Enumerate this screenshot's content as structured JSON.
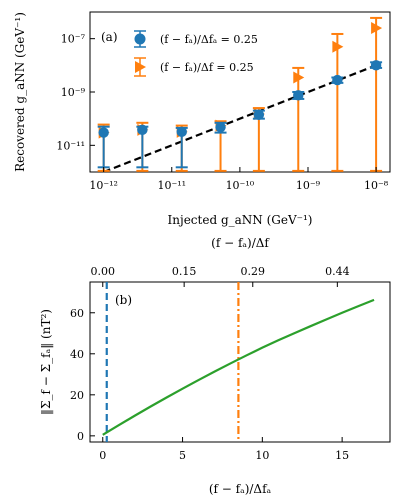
{
  "chart_data": [
    {
      "type": "scatter",
      "panel_label": "(a)",
      "xlabel": "Injected g_aNN (GeV⁻¹)",
      "ylabel": "Recovered g_aNN (GeV⁻¹)",
      "xscale": "log",
      "yscale": "log",
      "xlim": [
        6.3e-13,
        1.6e-08
      ],
      "ylim": [
        1e-12,
        1e-06
      ],
      "x_ticks": [
        {
          "value": 1e-12,
          "label": "10⁻¹²"
        },
        {
          "value": 1e-11,
          "label": "10⁻¹¹"
        },
        {
          "value": 1e-10,
          "label": "10⁻¹⁰"
        },
        {
          "value": 1e-09,
          "label": "10⁻⁹"
        },
        {
          "value": 1e-08,
          "label": "10⁻⁸"
        }
      ],
      "y_ticks": [
        {
          "value": 1e-11,
          "label": "10⁻¹¹"
        },
        {
          "value": 1e-09,
          "label": "10⁻⁹"
        },
        {
          "value": 1e-07,
          "label": "10⁻⁷"
        }
      ],
      "legend_placement": "top-left",
      "reference_line": {
        "style": "dashed",
        "color": "#000000",
        "x": [
          1e-12,
          1e-08
        ],
        "y": [
          1e-12,
          1e-08
        ]
      },
      "series": [
        {
          "name": "(f − fₐ)/Δfₐ = 0.25",
          "marker": "circle",
          "color": "#1f77b4",
          "points": [
            {
              "x": 1e-12,
              "y": 3e-11,
              "lo": 1.5e-12,
              "hi": 5e-11
            },
            {
              "x": 3.7e-12,
              "y": 3.8e-11,
              "lo": 1.5e-12,
              "hi": 5e-11
            },
            {
              "x": 1.4e-11,
              "y": 3.2e-11,
              "lo": 1.5e-12,
              "hi": 4.5e-11
            },
            {
              "x": 5.2e-11,
              "y": 4.8e-11,
              "lo": 3e-11,
              "hi": 7e-11
            },
            {
              "x": 1.9e-10,
              "y": 1.4e-10,
              "lo": 1e-10,
              "hi": 2e-10
            },
            {
              "x": 7.2e-10,
              "y": 7.5e-10,
              "lo": 5.5e-10,
              "hi": 1e-09
            },
            {
              "x": 2.7e-09,
              "y": 2.8e-09,
              "lo": 2.2e-09,
              "hi": 3.5e-09
            },
            {
              "x": 1e-08,
              "y": 1e-08,
              "lo": 8e-09,
              "hi": 1.3e-08
            }
          ]
        },
        {
          "name": "(f − fₐ)/Δf = 0.25",
          "marker": "triangle-right",
          "color": "#ff7f0e",
          "points": [
            {
              "x": 1e-12,
              "y": 3e-11,
              "lo": 1.1e-12,
              "hi": 6e-11
            },
            {
              "x": 3.7e-12,
              "y": 3.8e-11,
              "lo": 1.1e-12,
              "hi": 7e-11
            },
            {
              "x": 1.4e-11,
              "y": 3.2e-11,
              "lo": 1.1e-12,
              "hi": 5.5e-11
            },
            {
              "x": 5.2e-11,
              "y": 5.5e-11,
              "lo": 1.1e-12,
              "hi": 8e-11
            },
            {
              "x": 1.9e-10,
              "y": 1.5e-10,
              "lo": 1.1e-12,
              "hi": 2.5e-10
            },
            {
              "x": 7.2e-10,
              "y": 3.5e-09,
              "lo": 1.1e-12,
              "hi": 8e-09
            },
            {
              "x": 2.7e-09,
              "y": 5e-08,
              "lo": 1.1e-12,
              "hi": 1.5e-07
            },
            {
              "x": 1e-08,
              "y": 2.5e-07,
              "lo": 1.1e-12,
              "hi": 6e-07
            }
          ]
        }
      ]
    },
    {
      "type": "line",
      "panel_label": "(b)",
      "xlabel": "(f − fₐ)/Δfₐ",
      "top_xlabel": "(f − fₐ)/Δf",
      "ylabel": "‖Σ_f − Σ_fₐ‖ (nT²)",
      "xlim": [
        -0.8,
        18.0
      ],
      "ylim": [
        -3,
        75
      ],
      "x_ticks": [
        0,
        5,
        10,
        15
      ],
      "y_ticks": [
        0,
        20,
        40,
        60
      ],
      "top_x_ticks": [
        {
          "value": 0.0,
          "label": "0.00"
        },
        {
          "value": 5.1,
          "label": "0.15"
        },
        {
          "value": 9.4,
          "label": "0.29"
        },
        {
          "value": 14.7,
          "label": "0.44"
        }
      ],
      "vertical_lines": [
        {
          "x": 0.25,
          "style": "dashed",
          "color": "#1f77b4"
        },
        {
          "x": 8.5,
          "style": "dashdot",
          "color": "#ff7f0e"
        }
      ],
      "series": [
        {
          "color": "#2ca02c",
          "x": [
            0,
            1,
            2,
            3,
            4,
            5,
            6,
            7,
            8,
            9,
            10,
            11,
            12,
            13,
            14,
            15,
            16,
            17
          ],
          "y": [
            0.5,
            5.2,
            9.8,
            14.3,
            18.7,
            23.0,
            27.2,
            31.3,
            35.3,
            39.2,
            43.0,
            46.6,
            50.0,
            53.4,
            56.7,
            60.0,
            63.2,
            66.3
          ]
        }
      ]
    }
  ]
}
